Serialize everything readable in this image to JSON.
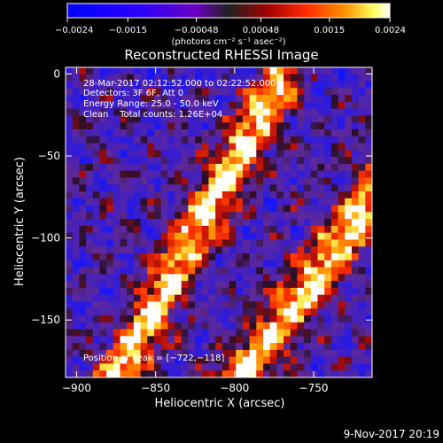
{
  "colorbar": {
    "ticks": [
      {
        "value": -0.0024,
        "label": "−0.0024"
      },
      {
        "value": -0.0015,
        "label": "−0.0015"
      },
      {
        "value": -0.00048,
        "label": "−0.00048"
      },
      {
        "value": 0.00048,
        "label": "0.00048"
      },
      {
        "value": 0.0015,
        "label": "0.0015"
      },
      {
        "value": 0.0024,
        "label": "0.0024"
      }
    ],
    "range": [
      -0.0024,
      0.0024
    ],
    "unit_label": "(photons cm⁻² s⁻¹ asec⁻²)"
  },
  "chart_data": {
    "type": "heatmap",
    "title": "Reconstructed RHESSI Image",
    "xlabel": "Heliocentric X (arcsec)",
    "ylabel": "Heliocentric Y (arcsec)",
    "xlim": [
      -907,
      -713
    ],
    "ylim": [
      -185,
      4
    ],
    "xticks": [
      {
        "value": -900,
        "label": "−900"
      },
      {
        "value": -850,
        "label": "−850"
      },
      {
        "value": -800,
        "label": "−800"
      },
      {
        "value": -750,
        "label": "−750"
      }
    ],
    "yticks": [
      {
        "value": 0,
        "label": "0"
      },
      {
        "value": -50,
        "label": "−50"
      },
      {
        "value": -100,
        "label": "−100"
      },
      {
        "value": -150,
        "label": "−150"
      }
    ],
    "annotations": [
      "28-Mar-2017 02:12:52.000 to 02:22:52.000",
      "Detectors: 3F 6F, Att 0",
      "Energy Range: 25.0 - 50.0 keV",
      "Clean    Total counts: 1.26E+04"
    ],
    "peak_label": "Position of Peak = [−722,−118]",
    "peak": [
      -722,
      -118
    ],
    "grid": false,
    "colormap": "blue-purple-red-yellow-white"
  },
  "footer": {
    "timestamp": "9-Nov-2017 20:19"
  }
}
